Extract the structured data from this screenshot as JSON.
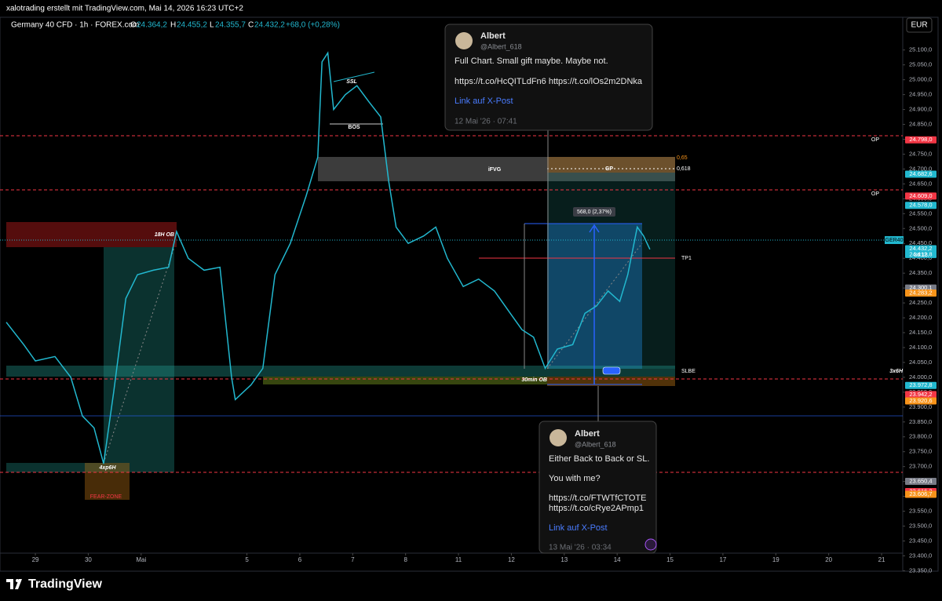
{
  "header": {
    "credit": "xalotrading erstellt mit TradingView.com, Mai 14, 2026 16:23 UTC+2"
  },
  "chart_data": {
    "type": "line",
    "symbol": "Germany 40 CFD · 1h · FOREX.com",
    "ohlc": [
      {
        "key": "O",
        "text": "24.364,2"
      },
      {
        "key": "H",
        "text": "24.455,2"
      },
      {
        "key": "L",
        "text": "24.355,7"
      },
      {
        "key": "C",
        "text": "24.432,2"
      }
    ],
    "change": "+68,0 (+0,28%)",
    "currency": "EUR",
    "symbol_badge": "GER40",
    "countdown": "36:18",
    "series": [
      {
        "name": "GER40",
        "color": "#22b8cf",
        "x": [
          -0.55,
          -0.22,
          0,
          0.37,
          0.67,
          0.89,
          1.11,
          1.29,
          1.48,
          1.71,
          1.93,
          2.23,
          2.52,
          2.67,
          2.89,
          3.19,
          3.49,
          3.71,
          3.78,
          4.08,
          4.3,
          4.53,
          4.82,
          5.12,
          5.34,
          5.42,
          5.53,
          5.64,
          5.86,
          6.08,
          6.31,
          6.53,
          6.68,
          6.82,
          7.05,
          7.34,
          7.57,
          7.79,
          8.09,
          8.38,
          8.68,
          8.98,
          9.2,
          9.42,
          9.64,
          9.87,
          10.16,
          10.39,
          10.61,
          10.83,
          11.05,
          11.2,
          11.38,
          11.5,
          11.62
        ],
        "values": [
          24185,
          24110,
          24055,
          24070,
          24000,
          23870,
          23830,
          23710,
          23950,
          24265,
          24345,
          24360,
          24370,
          24490,
          24400,
          24360,
          24370,
          24000,
          23925,
          23975,
          24030,
          24345,
          24450,
          24610,
          24740,
          25060,
          25090,
          24900,
          24950,
          24980,
          24925,
          24875,
          24660,
          24505,
          24450,
          24475,
          24505,
          24400,
          24305,
          24330,
          24290,
          24215,
          24160,
          24135,
          24030,
          24095,
          24110,
          24215,
          24240,
          24290,
          24255,
          24345,
          24505,
          24475,
          24430
        ]
      }
    ],
    "xlim": [
      -0.55,
      16.4
    ],
    "ylim": [
      23330,
      25210
    ],
    "grid": false,
    "xticks": [
      {
        "value": 0,
        "label": "29"
      },
      {
        "value": 1,
        "label": "30"
      },
      {
        "value": 2,
        "label": "Mai"
      },
      {
        "value": 4,
        "label": "5"
      },
      {
        "value": 5,
        "label": "6"
      },
      {
        "value": 6,
        "label": "7"
      },
      {
        "value": 7,
        "label": "8"
      },
      {
        "value": 8,
        "label": "11"
      },
      {
        "value": 9,
        "label": "12"
      },
      {
        "value": 10,
        "label": "13"
      },
      {
        "value": 11,
        "label": "14"
      },
      {
        "value": 12,
        "label": "15"
      },
      {
        "value": 13,
        "label": "17"
      },
      {
        "value": 14,
        "label": "19"
      },
      {
        "value": 15,
        "label": "20"
      },
      {
        "value": 16,
        "label": "21"
      }
    ],
    "yticks": [
      {
        "value": 25100,
        "label": "25.100,0"
      },
      {
        "value": 25050,
        "label": "25.050,0"
      },
      {
        "value": 25000,
        "label": "25.000,0"
      },
      {
        "value": 24950,
        "label": "24.950,0"
      },
      {
        "value": 24900,
        "label": "24.900,0"
      },
      {
        "value": 24850,
        "label": "24.850,0"
      },
      {
        "value": 24800,
        "label": "24.800,0"
      },
      {
        "value": 24750,
        "label": "24.750,0"
      },
      {
        "value": 24700,
        "label": "24.700,0"
      },
      {
        "value": 24650,
        "label": "24.650,0"
      },
      {
        "value": 24600,
        "label": "24.600,0"
      },
      {
        "value": 24550,
        "label": "24.550,0"
      },
      {
        "value": 24500,
        "label": "24.500,0"
      },
      {
        "value": 24450,
        "label": "24.450,0"
      },
      {
        "value": 24400,
        "label": "24.400,0"
      },
      {
        "value": 24350,
        "label": "24.350,0"
      },
      {
        "value": 24300,
        "label": "24.300,0"
      },
      {
        "value": 24250,
        "label": "24.250,0"
      },
      {
        "value": 24200,
        "label": "24.200,0"
      },
      {
        "value": 24150,
        "label": "24.150,0"
      },
      {
        "value": 24100,
        "label": "24.100,0"
      },
      {
        "value": 24050,
        "label": "24.050,0"
      },
      {
        "value": 24000,
        "label": "24.000,0"
      },
      {
        "value": 23950,
        "label": "23.950,0"
      },
      {
        "value": 23900,
        "label": "23.900,0"
      },
      {
        "value": 23850,
        "label": "23.850,0"
      },
      {
        "value": 23800,
        "label": "23.800,0"
      },
      {
        "value": 23750,
        "label": "23.750,0"
      },
      {
        "value": 23700,
        "label": "23.700,0"
      },
      {
        "value": 23650,
        "label": "23.650,0"
      },
      {
        "value": 23600,
        "label": "23.600,0"
      },
      {
        "value": 23550,
        "label": "23.550,0"
      },
      {
        "value": 23500,
        "label": "23.500,0"
      },
      {
        "value": 23450,
        "label": "23.450,0"
      },
      {
        "value": 23400,
        "label": "23.400,0"
      },
      {
        "value": 23350,
        "label": "23.350,0"
      }
    ],
    "price_labels": [
      {
        "value": 24798,
        "label": "24.798,0",
        "color": "#f23645"
      },
      {
        "value": 24682.6,
        "label": "24.682,6",
        "color": "#22b8cf"
      },
      {
        "value": 24609,
        "label": "24.609,0",
        "color": "#f23645"
      },
      {
        "value": 24578,
        "label": "24.578,0",
        "color": "#22b8cf"
      },
      {
        "value": 24432.2,
        "label": "24.432,2",
        "color": "#22b8cf"
      },
      {
        "value": 24412.8,
        "label": "24.412,8",
        "color": "#22b8cf"
      },
      {
        "value": 24300.1,
        "label": "24.300,1",
        "color": "#787b86"
      },
      {
        "value": 24283.2,
        "label": "24.283,2",
        "color": "#f7931a"
      },
      {
        "value": 23972.8,
        "label": "23.972,8",
        "color": "#22b8cf"
      },
      {
        "value": 23942.2,
        "label": "23.942,2",
        "color": "#f23645"
      },
      {
        "value": 23920.6,
        "label": "23.920,6",
        "color": "#f7931a"
      },
      {
        "value": 23650.4,
        "label": "23.650,4",
        "color": "#787b86"
      },
      {
        "value": 23616.2,
        "label": "23.616,2",
        "color": "#f23645"
      },
      {
        "value": 23606.7,
        "label": "23.606,7",
        "color": "#f7931a"
      }
    ],
    "annotations": [
      "18H OB",
      "SSL",
      "BOS",
      "iFVG",
      "GP",
      "0,65",
      "0,618",
      "OP",
      "OP",
      "TP1",
      "SLBE",
      "3x6H",
      "30min OB",
      "4xp6H",
      "FEAR-ZONE",
      "568,0 (2,37%)"
    ]
  },
  "tweets": [
    {
      "name": "Albert",
      "handle": "@Albert_618",
      "lines": [
        "Full Chart. Small gift maybe. Maybe not.",
        "https://t.co/HcQITLdFn6 https://t.co/lOs2m2DNka"
      ],
      "link": "Link auf X-Post",
      "date": "12 Mai '26 · 07:41"
    },
    {
      "name": "Albert",
      "handle": "@Albert_618",
      "lines": [
        "Either Back to Back or SL.",
        "You with me?",
        "https://t.co/FTWTfCTOTE",
        "https://t.co/cRye2APmp1"
      ],
      "link": "Link auf X-Post",
      "date": "13 Mai '26 · 03:34"
    }
  ],
  "footer": {
    "brand": "TradingView"
  }
}
